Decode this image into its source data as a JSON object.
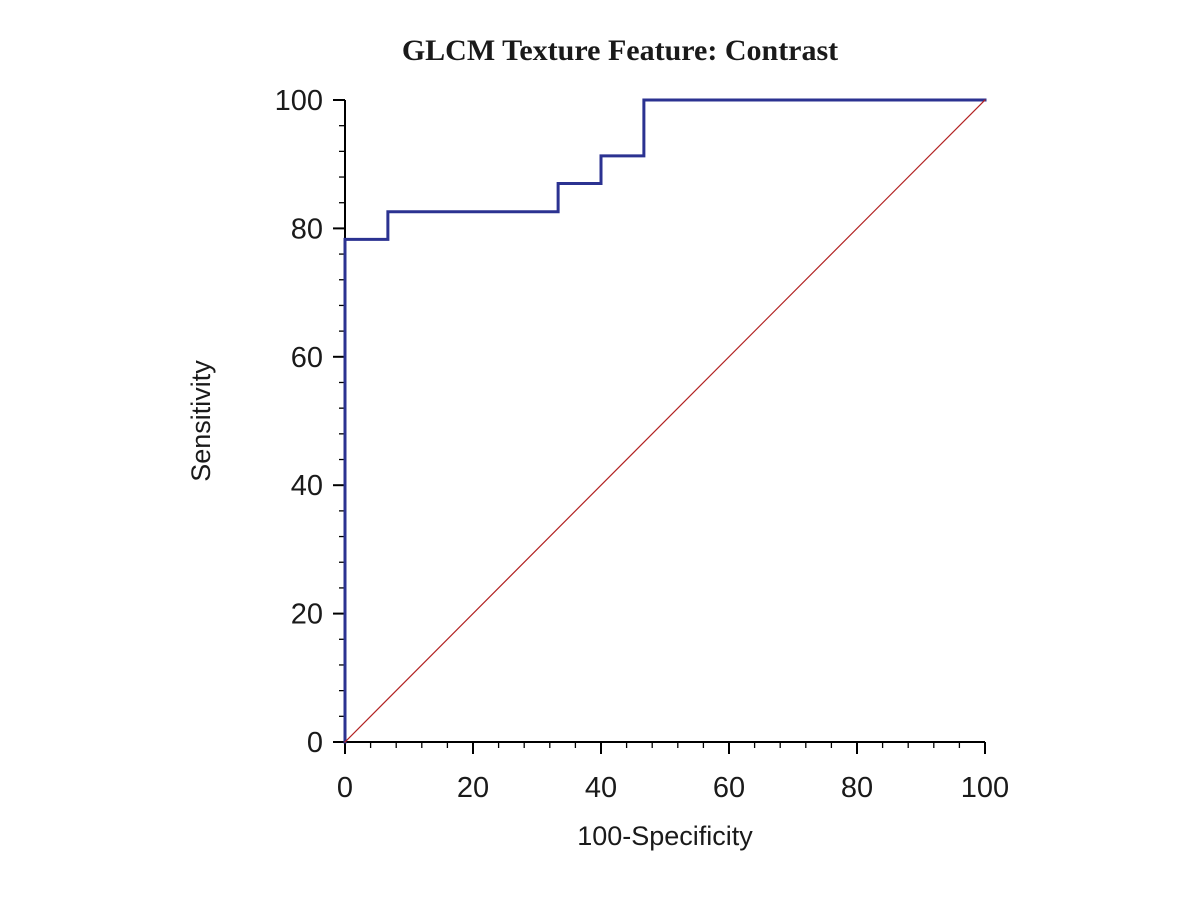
{
  "chart": {
    "title": "GLCM Texture Feature: Contrast",
    "xlabel": "100-Specificity",
    "ylabel": "Sensitivity"
  },
  "chart_data": {
    "type": "line",
    "subtype": "roc-curve",
    "title": "GLCM Texture Feature: Contrast",
    "xlabel": "100-Specificity",
    "ylabel": "Sensitivity",
    "xlim": [
      0,
      100
    ],
    "ylim": [
      0,
      100
    ],
    "x_ticks": [
      0,
      20,
      40,
      60,
      80,
      100
    ],
    "y_ticks": [
      0,
      20,
      40,
      60,
      80,
      100
    ],
    "minor_tick_step": 4,
    "grid": false,
    "legend_position": "none",
    "colors": {
      "axis": "#000000",
      "roc_curve": "#2b3291",
      "reference_line": "#b22222",
      "background": "#ffffff"
    },
    "series": [
      {
        "name": "ROC curve (Contrast)",
        "color": "#2b3291",
        "stroke_width": 3,
        "step": true,
        "x": [
          0,
          0,
          6.7,
          6.7,
          33.3,
          33.3,
          40,
          40,
          46.7,
          46.7,
          100
        ],
        "y": [
          0,
          78.3,
          78.3,
          82.6,
          82.6,
          87.0,
          87.0,
          91.3,
          91.3,
          100,
          100
        ]
      },
      {
        "name": "Reference diagonal",
        "color": "#b22222",
        "stroke_width": 1.2,
        "step": false,
        "x": [
          0,
          100
        ],
        "y": [
          0,
          100
        ]
      }
    ]
  }
}
